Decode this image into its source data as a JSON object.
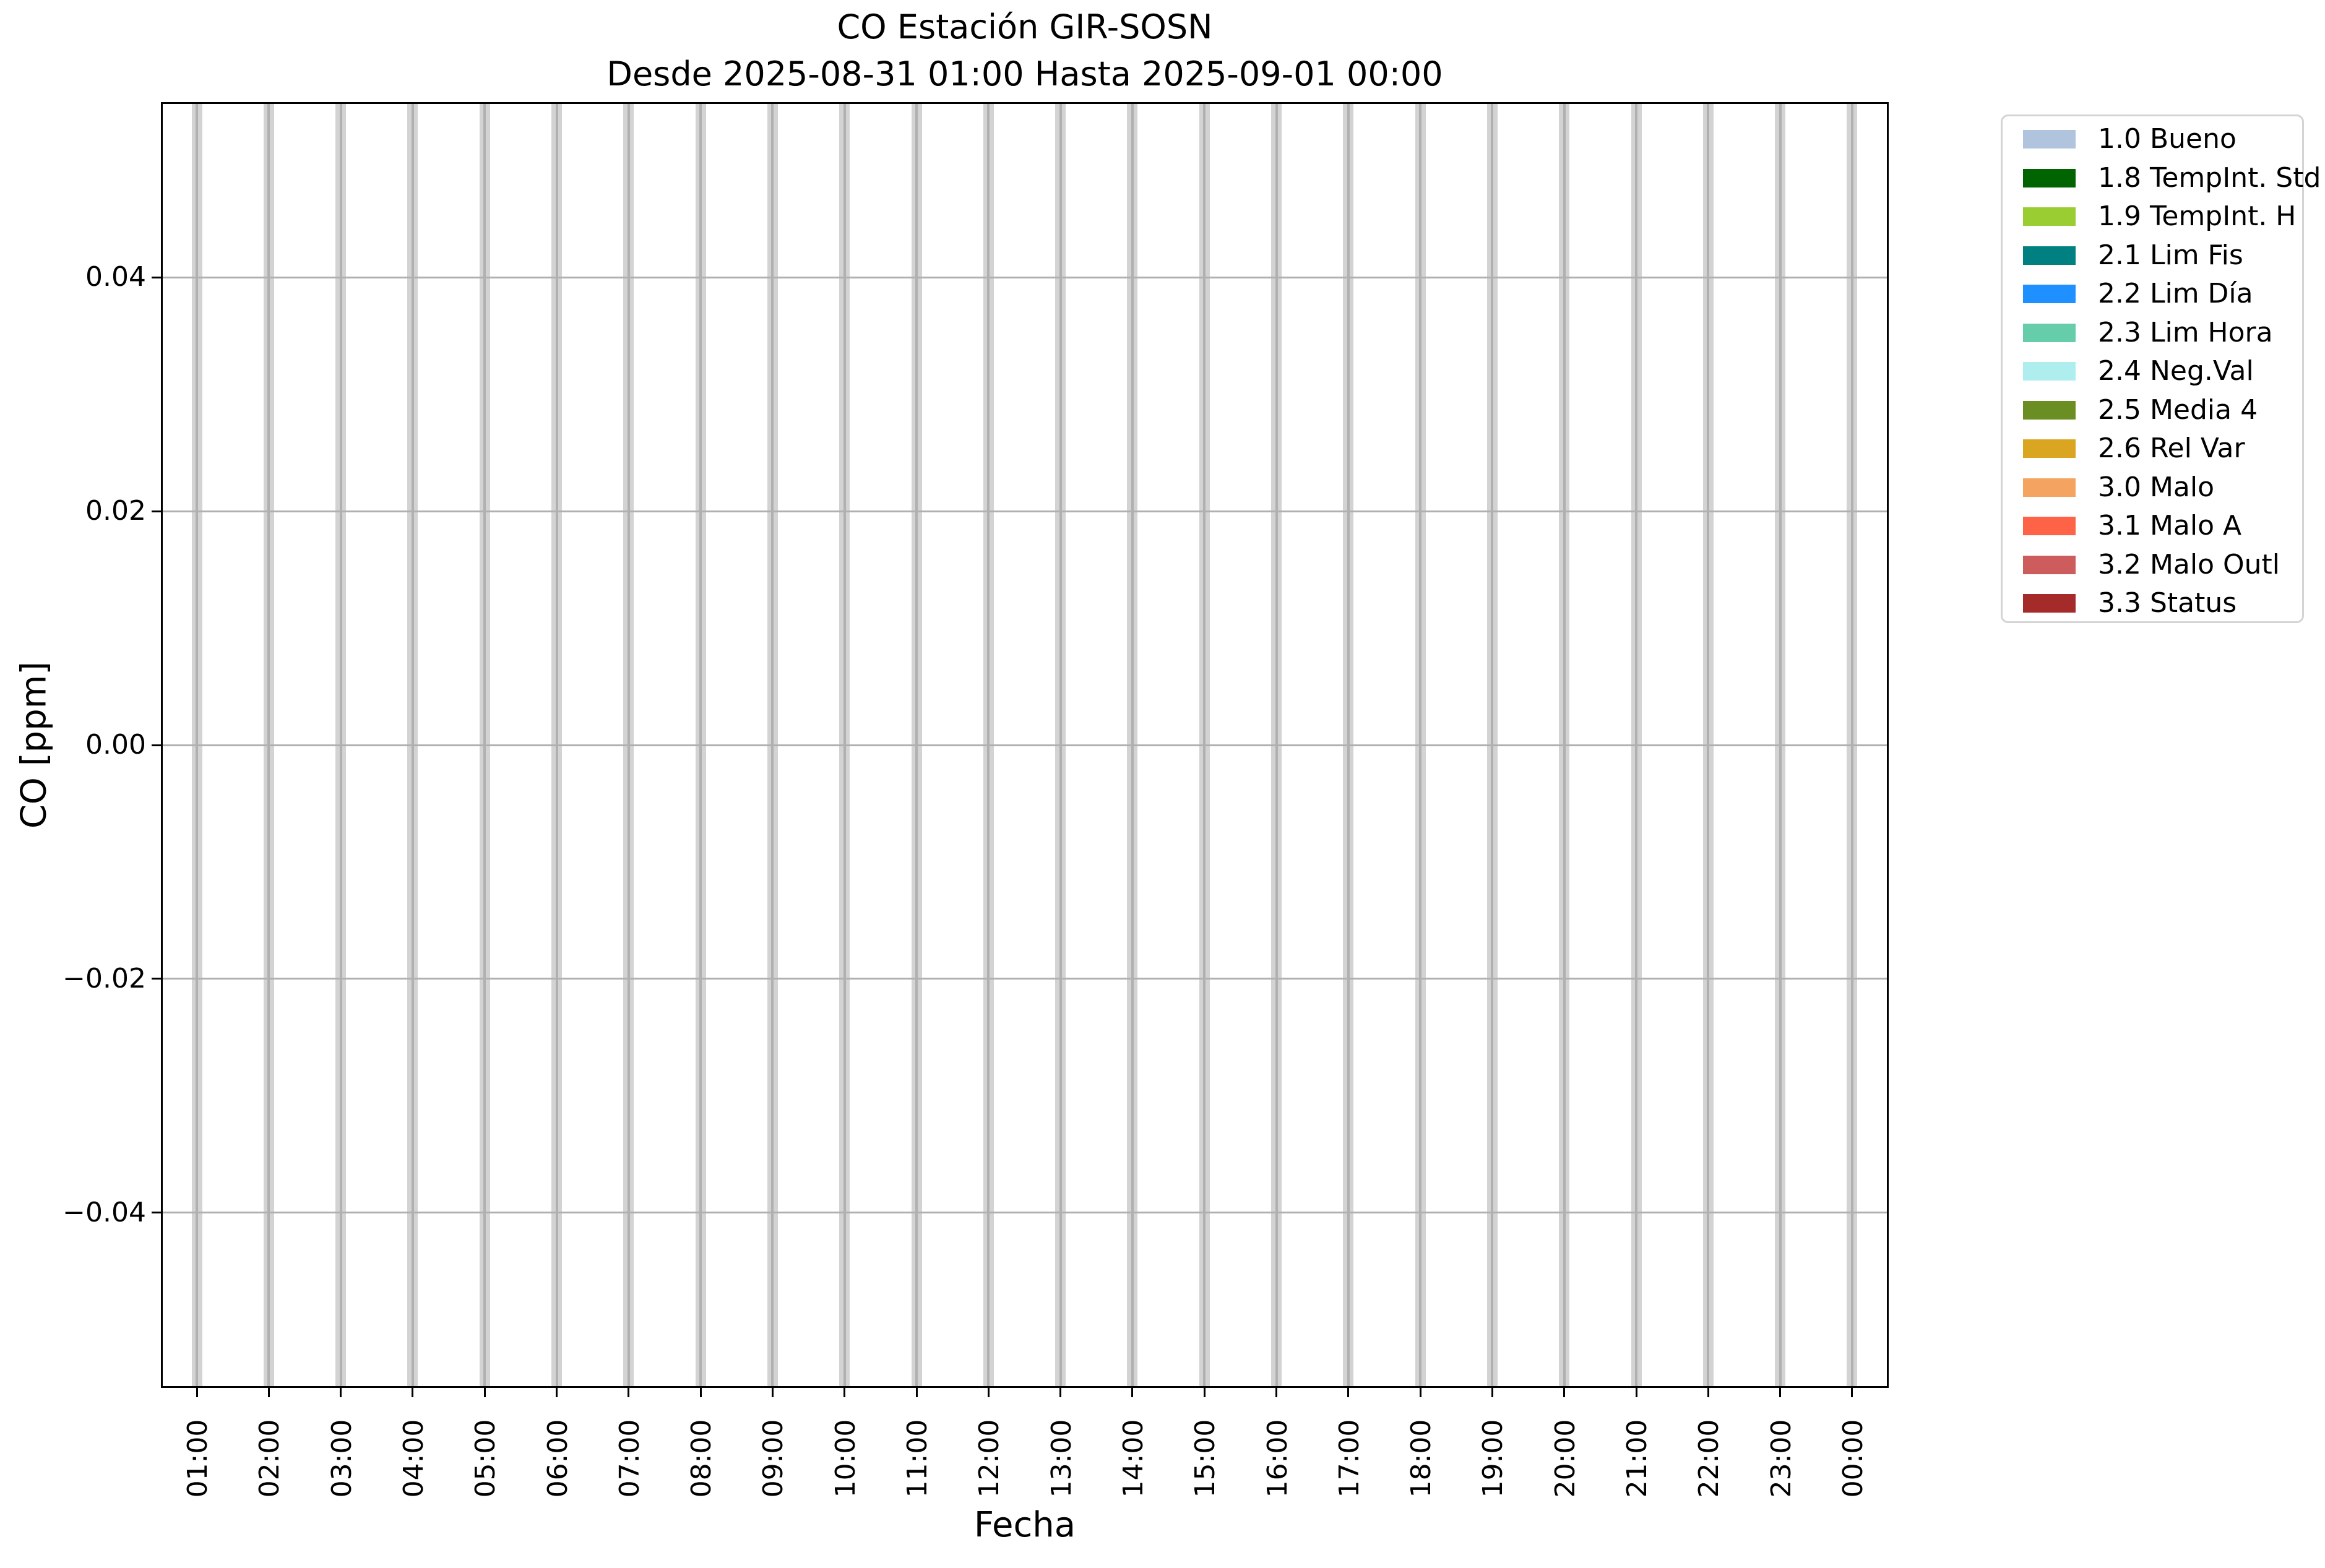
{
  "chart_data": {
    "type": "bar",
    "title": "CO Estación GIR-SOSN",
    "subtitle": "Desde 2025-08-31 01:00 Hasta 2025-09-01 00:00",
    "xlabel": "Fecha",
    "ylabel": "CO [ppm]",
    "categories": [
      "01:00",
      "02:00",
      "03:00",
      "04:00",
      "05:00",
      "06:00",
      "07:00",
      "08:00",
      "09:00",
      "10:00",
      "11:00",
      "12:00",
      "13:00",
      "14:00",
      "15:00",
      "16:00",
      "17:00",
      "18:00",
      "19:00",
      "20:00",
      "21:00",
      "22:00",
      "23:00",
      "00:00"
    ],
    "values": [
      null,
      null,
      null,
      null,
      null,
      null,
      null,
      null,
      null,
      null,
      null,
      null,
      null,
      null,
      null,
      null,
      null,
      null,
      null,
      null,
      null,
      null,
      null,
      null
    ],
    "no_data_visible": true,
    "placeholder_band_color": "#d3d3d3",
    "grid": true,
    "grid_color": "#b0b0b0",
    "y_ticks": [
      0.04,
      0.02,
      0.0,
      -0.02,
      -0.04
    ],
    "y_tick_labels": [
      "0.04",
      "0.02",
      "0.00",
      "−0.02",
      "−0.04"
    ],
    "ylim": [
      -0.055,
      0.055
    ],
    "legend_position": "outside-right",
    "legend": [
      {
        "label": "1.0 Bueno",
        "color": "#b0c4de"
      },
      {
        "label": "1.8 TempInt. Std",
        "color": "#006400"
      },
      {
        "label": "1.9 TempInt. H",
        "color": "#9acd32"
      },
      {
        "label": "2.1 Lim Fis",
        "color": "#008080"
      },
      {
        "label": "2.2 Lim Día",
        "color": "#1e90ff"
      },
      {
        "label": "2.3 Lim Hora",
        "color": "#66cdaa"
      },
      {
        "label": "2.4 Neg.Val",
        "color": "#afeeee"
      },
      {
        "label": "2.5 Media 4",
        "color": "#6b8e23"
      },
      {
        "label": "2.6 Rel Var",
        "color": "#daa520"
      },
      {
        "label": "3.0 Malo",
        "color": "#f4a460"
      },
      {
        "label": "3.1 Malo A",
        "color": "#ff6347"
      },
      {
        "label": "3.2 Malo Outl",
        "color": "#cd5c5c"
      },
      {
        "label": "3.3 Status",
        "color": "#a52a2a"
      }
    ]
  }
}
